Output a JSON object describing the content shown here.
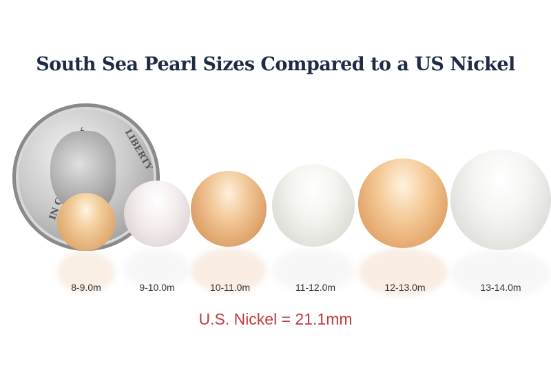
{
  "title": "South Sea Pearl Sizes Compared to a US Nickel",
  "coin": {
    "inscription_left": "IN GOD WE TRUST",
    "inscription_right": "LIBERTY"
  },
  "pearls": [
    {
      "label": "8-9.0m",
      "color": "gold"
    },
    {
      "label": "9-10.0m",
      "color": "white"
    },
    {
      "label": "10-11.0m",
      "color": "peach"
    },
    {
      "label": "11-12.0m",
      "color": "white"
    },
    {
      "label": "12-13.0m",
      "color": "gold"
    },
    {
      "label": "13-14.0m",
      "color": "white"
    }
  ],
  "nickel_note": "U.S. Nickel = 21.1mm",
  "colors": {
    "title": "#1f2a47",
    "note": "#c23a40"
  }
}
